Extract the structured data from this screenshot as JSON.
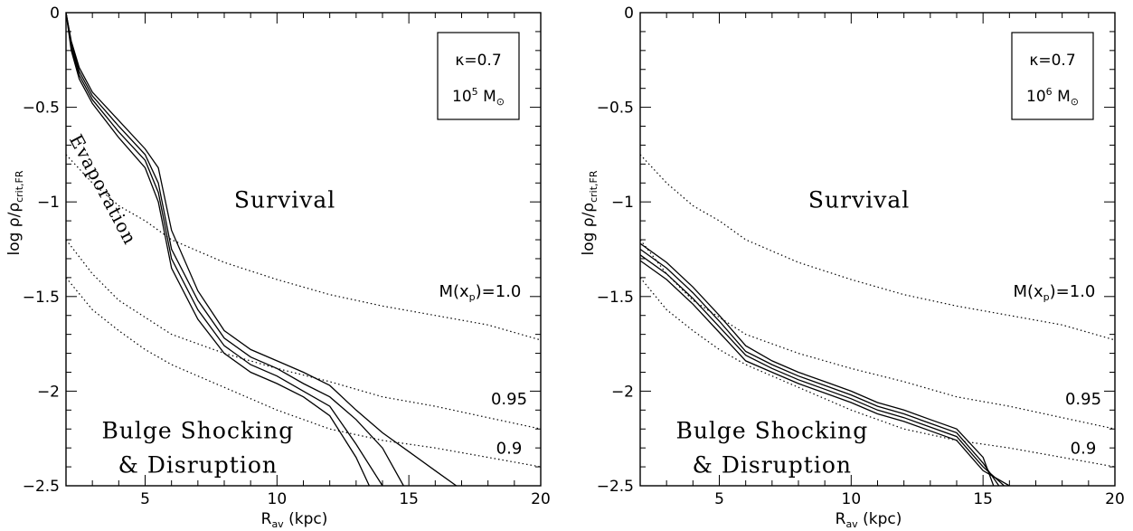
{
  "chart_data": [
    {
      "type": "line",
      "xlabel_main": "R",
      "xlabel_sub": "av",
      "xlabel_unit": "(kpc)",
      "ylabel_main": "log ρ/ρ",
      "ylabel_sub": "crit,FR",
      "xlim": [
        2,
        20
      ],
      "ylim": [
        -2.5,
        0
      ],
      "xticks": [
        5,
        10,
        15,
        20
      ],
      "yticks": [
        0,
        -0.5,
        -1,
        -1.5,
        -2,
        -2.5
      ],
      "ytick_labels": [
        "0",
        "−0.5",
        "−1",
        "−1.5",
        "−2",
        "−2.5"
      ],
      "box": {
        "kappa": "κ=0.7",
        "mass_base": "10",
        "mass_exp": "5",
        "mass_unit": "M",
        "mass_unit_sub": "⊙"
      },
      "region_labels": {
        "survival": "Survival",
        "bulge1": "Bulge Shocking",
        "bulge2": "& Disruption",
        "evaporation": "Evaporation"
      },
      "curve_labels": {
        "m_main": "M(x",
        "m_sub": "p",
        "m_tail": ")=1.0",
        "l095": "0.95",
        "l09": "0.9"
      },
      "dotted_series": [
        {
          "x": [
            2,
            3,
            4,
            5,
            6,
            8,
            10,
            12,
            14,
            16,
            18,
            20
          ],
          "y": [
            -0.75,
            -0.9,
            -1.02,
            -1.1,
            -1.2,
            -1.32,
            -1.41,
            -1.49,
            -1.55,
            -1.6,
            -1.65,
            -1.73
          ]
        },
        {
          "x": [
            2,
            3,
            4,
            5,
            6,
            8,
            10,
            12,
            14,
            16,
            18,
            20
          ],
          "y": [
            -1.2,
            -1.38,
            -1.52,
            -1.61,
            -1.7,
            -1.8,
            -1.88,
            -1.95,
            -2.03,
            -2.08,
            -2.14,
            -2.2
          ]
        },
        {
          "x": [
            2,
            3,
            4,
            5,
            6,
            8,
            10,
            12,
            14,
            16,
            18,
            20
          ],
          "y": [
            -1.4,
            -1.57,
            -1.68,
            -1.78,
            -1.86,
            -1.98,
            -2.1,
            -2.2,
            -2.26,
            -2.3,
            -2.35,
            -2.4
          ]
        }
      ],
      "solid_series": [
        {
          "x": [
            2,
            2.2,
            2.5,
            3,
            4,
            5,
            5.5,
            6,
            7,
            8,
            9,
            10,
            11,
            12,
            13,
            13.5
          ],
          "y": [
            0,
            -0.2,
            -0.35,
            -0.48,
            -0.66,
            -0.82,
            -1.0,
            -1.35,
            -1.62,
            -1.8,
            -1.9,
            -1.96,
            -2.03,
            -2.13,
            -2.35,
            -2.5
          ]
        },
        {
          "x": [
            2,
            2.2,
            2.5,
            3,
            4,
            5,
            5.5,
            6,
            7,
            8,
            9,
            10,
            11,
            12,
            13,
            14
          ],
          "y": [
            0,
            -0.18,
            -0.33,
            -0.46,
            -0.63,
            -0.78,
            -0.95,
            -1.3,
            -1.57,
            -1.76,
            -1.86,
            -1.92,
            -2.0,
            -2.08,
            -2.28,
            -2.5
          ]
        },
        {
          "x": [
            2,
            2.2,
            2.5,
            3,
            4,
            5,
            5.5,
            6,
            7,
            8,
            9,
            10,
            11,
            12,
            13,
            14,
            14.8
          ],
          "y": [
            0,
            -0.16,
            -0.31,
            -0.44,
            -0.6,
            -0.75,
            -0.9,
            -1.25,
            -1.52,
            -1.72,
            -1.82,
            -1.88,
            -1.96,
            -2.03,
            -2.15,
            -2.3,
            -2.5
          ]
        },
        {
          "x": [
            2,
            2.2,
            2.5,
            3,
            4,
            5,
            5.5,
            6,
            7,
            8,
            9,
            10,
            11,
            12,
            13,
            14,
            15,
            16,
            16.8
          ],
          "y": [
            0,
            -0.15,
            -0.29,
            -0.42,
            -0.57,
            -0.72,
            -0.82,
            -1.15,
            -1.47,
            -1.68,
            -1.78,
            -1.84,
            -1.9,
            -1.97,
            -2.1,
            -2.22,
            -2.32,
            -2.42,
            -2.5
          ]
        }
      ]
    },
    {
      "type": "line",
      "xlabel_main": "R",
      "xlabel_sub": "av",
      "xlabel_unit": "(kpc)",
      "ylabel_main": "log ρ/ρ",
      "ylabel_sub": "crit,FR",
      "xlim": [
        2,
        20
      ],
      "ylim": [
        -2.5,
        0
      ],
      "xticks": [
        5,
        10,
        15,
        20
      ],
      "yticks": [
        0,
        -0.5,
        -1,
        -1.5,
        -2,
        -2.5
      ],
      "ytick_labels": [
        "0",
        "−0.5",
        "−1",
        "−1.5",
        "−2",
        "−2.5"
      ],
      "box": {
        "kappa": "κ=0.7",
        "mass_base": "10",
        "mass_exp": "6",
        "mass_unit": "M",
        "mass_unit_sub": "⊙"
      },
      "region_labels": {
        "survival": "Survival",
        "bulge1": "Bulge Shocking",
        "bulge2": "& Disruption"
      },
      "curve_labels": {
        "m_main": "M(x",
        "m_sub": "p",
        "m_tail": ")=1.0",
        "l095": "0.95",
        "l09": "0.9"
      },
      "dotted_series": [
        {
          "x": [
            2,
            3,
            4,
            5,
            6,
            8,
            10,
            12,
            14,
            16,
            18,
            20
          ],
          "y": [
            -0.75,
            -0.9,
            -1.02,
            -1.1,
            -1.2,
            -1.32,
            -1.41,
            -1.49,
            -1.55,
            -1.6,
            -1.65,
            -1.73
          ]
        },
        {
          "x": [
            2,
            3,
            4,
            5,
            6,
            8,
            10,
            12,
            14,
            16,
            18,
            20
          ],
          "y": [
            -1.2,
            -1.38,
            -1.52,
            -1.61,
            -1.7,
            -1.8,
            -1.88,
            -1.95,
            -2.03,
            -2.08,
            -2.14,
            -2.2
          ]
        },
        {
          "x": [
            2,
            3,
            4,
            5,
            6,
            8,
            10,
            12,
            14,
            16,
            18,
            20
          ],
          "y": [
            -1.4,
            -1.57,
            -1.68,
            -1.78,
            -1.86,
            -1.98,
            -2.1,
            -2.2,
            -2.26,
            -2.3,
            -2.35,
            -2.4
          ]
        }
      ],
      "solid_series": [
        {
          "x": [
            2,
            3,
            4,
            5,
            6,
            7,
            8,
            9,
            10,
            11,
            12,
            13,
            14,
            15,
            15.4
          ],
          "y": [
            -1.22,
            -1.32,
            -1.45,
            -1.6,
            -1.76,
            -1.84,
            -1.9,
            -1.95,
            -2.0,
            -2.06,
            -2.1,
            -2.15,
            -2.2,
            -2.35,
            -2.5
          ]
        },
        {
          "x": [
            2,
            3,
            4,
            5,
            6,
            7,
            8,
            9,
            10,
            11,
            12,
            13,
            14,
            15,
            15.6
          ],
          "y": [
            -1.25,
            -1.35,
            -1.48,
            -1.63,
            -1.79,
            -1.86,
            -1.92,
            -1.97,
            -2.02,
            -2.08,
            -2.12,
            -2.17,
            -2.22,
            -2.38,
            -2.5
          ]
        },
        {
          "x": [
            2,
            3,
            4,
            5,
            6,
            7,
            8,
            9,
            10,
            11,
            12,
            13,
            14,
            15,
            15.8
          ],
          "y": [
            -1.28,
            -1.38,
            -1.51,
            -1.66,
            -1.81,
            -1.88,
            -1.94,
            -1.99,
            -2.04,
            -2.1,
            -2.14,
            -2.19,
            -2.24,
            -2.4,
            -2.5
          ]
        },
        {
          "x": [
            2,
            3,
            4,
            5,
            6,
            7,
            8,
            9,
            10,
            11,
            12,
            13,
            14,
            15,
            16
          ],
          "y": [
            -1.31,
            -1.41,
            -1.54,
            -1.69,
            -1.84,
            -1.9,
            -1.96,
            -2.01,
            -2.06,
            -2.12,
            -2.16,
            -2.21,
            -2.26,
            -2.42,
            -2.5
          ]
        }
      ]
    }
  ]
}
